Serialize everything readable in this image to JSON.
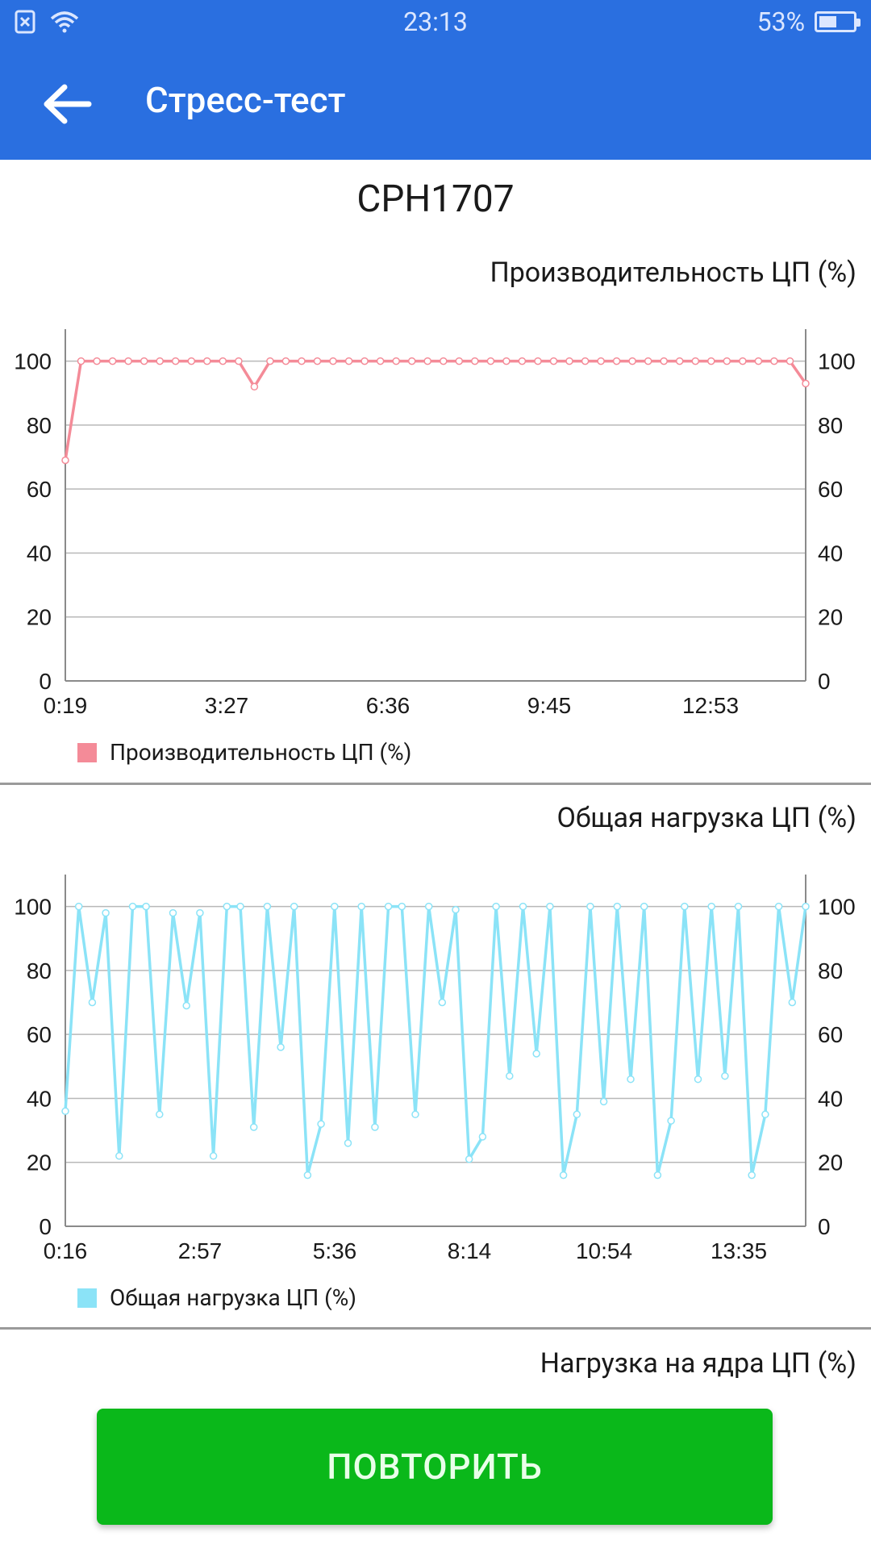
{
  "status_bar": {
    "time": "23:13",
    "battery": "53%",
    "battery_fraction": 0.53,
    "icons": [
      "sim-off-icon",
      "wifi-icon",
      "battery-icon"
    ]
  },
  "app_bar": {
    "title": "Стресс-тест",
    "back_icon": "arrow-back-icon",
    "color": "#2a6fe0"
  },
  "device": {
    "name": "CPH1707"
  },
  "sections": {
    "perf_title": "Производительность ЦП (%)",
    "load_title": "Общая нагрузка ЦП (%)",
    "cores_title": "Нагрузка на ядра ЦП (%)"
  },
  "chart_data": [
    {
      "type": "line",
      "title": "Производительность ЦП (%)",
      "x_tick_labels": [
        "0:19",
        "3:27",
        "6:36",
        "9:45",
        "12:53"
      ],
      "y_ticks": [
        0,
        20,
        40,
        60,
        80,
        100
      ],
      "ylim": [
        0,
        110
      ],
      "grid": true,
      "legend_position": "bottom-left",
      "series": [
        {
          "name": "Производительность ЦП (%)",
          "color": "#f48b98",
          "values": [
            69,
            100,
            100,
            100,
            100,
            100,
            100,
            100,
            100,
            100,
            100,
            100,
            92,
            100,
            100,
            100,
            100,
            100,
            100,
            100,
            100,
            100,
            100,
            100,
            100,
            100,
            100,
            100,
            100,
            100,
            100,
            100,
            100,
            100,
            100,
            100,
            100,
            100,
            100,
            100,
            100,
            100,
            100,
            100,
            100,
            100,
            100,
            93
          ]
        }
      ]
    },
    {
      "type": "line",
      "title": "Общая нагрузка ЦП (%)",
      "x_tick_labels": [
        "0:16",
        "2:57",
        "5:36",
        "8:14",
        "10:54",
        "13:35"
      ],
      "y_ticks": [
        0,
        20,
        40,
        60,
        80,
        100
      ],
      "ylim": [
        0,
        110
      ],
      "grid": true,
      "legend_position": "bottom-left",
      "series": [
        {
          "name": "Общая нагрузка ЦП (%)",
          "color": "#8be3f7",
          "values": [
            36,
            100,
            70,
            98,
            22,
            100,
            100,
            35,
            98,
            69,
            98,
            22,
            100,
            100,
            31,
            100,
            56,
            100,
            16,
            32,
            100,
            26,
            100,
            31,
            100,
            100,
            35,
            100,
            70,
            99,
            21,
            28,
            100,
            47,
            100,
            54,
            100,
            16,
            35,
            100,
            39,
            100,
            46,
            100,
            16,
            33,
            100,
            46,
            100,
            47,
            100,
            16,
            35,
            100,
            70,
            100
          ]
        }
      ]
    }
  ],
  "legend": {
    "perf": "Производительность ЦП (%)",
    "load": "Общая нагрузка ЦП (%)"
  },
  "button": {
    "repeat_label": "ПОВТОРИТЬ",
    "color": "#0ab81a"
  }
}
